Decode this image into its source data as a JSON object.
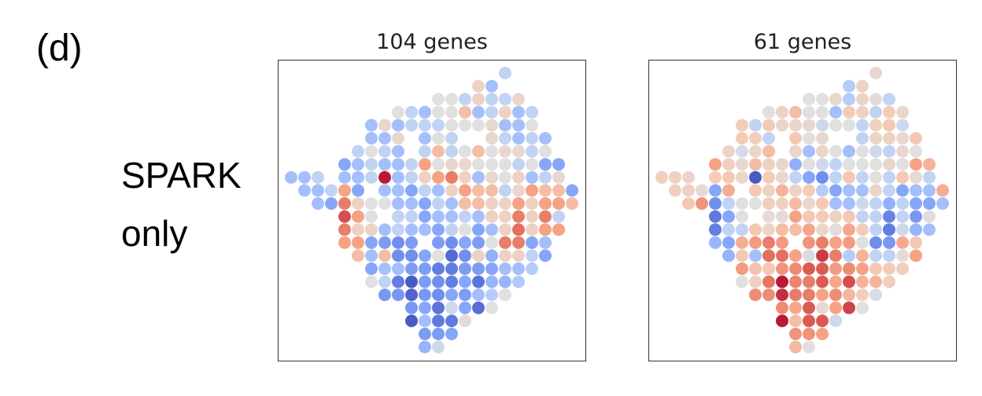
{
  "figure_label": "(d)",
  "row_label": [
    "SPARK",
    "only"
  ],
  "colormap": {
    "name": "coolwarm",
    "low": "#3b4cc0",
    "mid": "#dddddd",
    "high": "#b40426",
    "vmin": -3,
    "vmax": 3
  },
  "chart_data": [
    {
      "type": "scatter",
      "title": "104 genes",
      "xlabel": "",
      "ylabel": "",
      "axes_ticks": false,
      "encoding": "spot grid (row, col) colored by value",
      "rows": [
        {
          "row": 0,
          "start_col": 16,
          "values": [
            -0.5
          ]
        },
        {
          "row": 1,
          "start_col": 14,
          "values": [
            0.5,
            -1
          ]
        },
        {
          "row": 2,
          "start_col": 11,
          "values": [
            0,
            0,
            -0.5,
            0.5,
            -0.5,
            -0.5,
            0.4
          ]
        },
        {
          "row": 3,
          "start_col": 8,
          "values": [
            0,
            -0.5,
            -1,
            0,
            0,
            1,
            -1,
            -0.5,
            0.5,
            -1,
            -0.5
          ]
        },
        {
          "row": 4,
          "start_col": 6,
          "values": [
            -1,
            0.3,
            -1,
            -0.5,
            -0.5,
            -0.5,
            0,
            0,
            0,
            0.3,
            -1,
            -1,
            0
          ]
        },
        {
          "row": 5,
          "start_col": 6,
          "values": [
            -1,
            -1,
            0.3,
            null,
            -1,
            0,
            -0.5,
            null,
            null,
            0.3,
            -0.5,
            -1,
            -0.5,
            -1
          ]
        },
        {
          "row": 6,
          "start_col": 5,
          "values": [
            -0.5,
            0,
            -0.5,
            -1,
            null,
            -0.5,
            1,
            -0.5,
            0,
            1,
            0,
            0.3,
            0.3,
            -0.5,
            0
          ]
        },
        {
          "row": 7,
          "start_col": 4,
          "values": [
            -1.5,
            -1,
            -0.5,
            -1,
            -1,
            -0.5,
            1.5,
            0,
            0.3,
            0.3,
            0,
            0,
            0,
            -0.5,
            0,
            -1.5,
            -1.5
          ]
        },
        {
          "row": 8,
          "start_col": 0,
          "values": [
            -1,
            -1,
            -0.5,
            null,
            -1,
            -1,
            -0.5,
            3,
            -1,
            -0.5,
            0.5,
            1.5,
            2,
            0.5,
            -1,
            0.3,
            0,
            0.5,
            -1,
            -0.5,
            0.3
          ]
        },
        {
          "row": 9,
          "start_col": 1,
          "values": [
            -1,
            -1,
            -0.5,
            1.5,
            -1.5,
            null,
            -1,
            -1,
            -1.5,
            -0.5,
            -1,
            0.5,
            1.5,
            1,
            1,
            -0.5,
            0.3,
            1.5,
            1,
            1,
            -1.5
          ]
        },
        {
          "row": 10,
          "start_col": 2,
          "values": [
            -1,
            -1.5,
            2,
            0.5,
            0,
            0,
            -1,
            -1,
            -1.5,
            -0.5,
            -1,
            1,
            1,
            0.5,
            0.5,
            1.5,
            0.5,
            1.5,
            1.5,
            1
          ]
        },
        {
          "row": 11,
          "start_col": 4,
          "values": [
            2.5,
            1.5,
            0,
            null,
            -0.5,
            -0.5,
            -1.5,
            -1,
            -1,
            -0.5,
            -1,
            0.5,
            0.5,
            2,
            0.5,
            2,
            -0.5
          ]
        },
        {
          "row": 12,
          "start_col": 4,
          "values": [
            2,
            0.5,
            0.5,
            -1,
            -0.5,
            -1,
            -1,
            -1.5,
            -0.5,
            0,
            -1.5,
            -1,
            0.5,
            2.2,
            0.5,
            1.5,
            1.5
          ]
        },
        {
          "row": 13,
          "start_col": 4,
          "values": [
            1.5,
            1.5,
            -1.5,
            -1.7,
            -2,
            -1.7,
            null,
            -1.7,
            -2,
            -1.5,
            -1.7,
            0,
            2,
            2,
            -1.5,
            -1
          ]
        },
        {
          "row": 14,
          "start_col": 5,
          "values": [
            1,
            -1,
            1,
            -2,
            -2,
            -1.5,
            0,
            -2.7,
            -2,
            0.5,
            -1.3,
            0.5,
            0.5,
            -0.5,
            -1.5
          ]
        },
        {
          "row": 15,
          "start_col": 6,
          "values": [
            -1.5,
            -1,
            -1,
            -1.7,
            -1.7,
            -2.3,
            -2.3,
            -1.7,
            -1.7,
            -1.5,
            -1,
            -1,
            -0.7
          ]
        },
        {
          "row": 16,
          "start_col": 6,
          "values": [
            0,
            -0.5,
            -2.3,
            -3,
            -1.7,
            -2,
            -2.3,
            -1.5,
            -2.5,
            -1.2,
            -1.2,
            -0.8
          ]
        },
        {
          "row": 17,
          "start_col": 7,
          "values": [
            -1.8,
            -1.8,
            -2.8,
            -1.8,
            -2,
            -1.5,
            -1.7,
            -1,
            -0.7,
            0
          ]
        },
        {
          "row": 18,
          "start_col": 9,
          "values": [
            -1.8,
            -1.5,
            -2.5,
            -0.3,
            -1.5,
            -2.6,
            0
          ]
        },
        {
          "row": 19,
          "start_col": 9,
          "values": [
            -3,
            -1,
            -2.4,
            -2.4,
            0.2
          ]
        },
        {
          "row": 20,
          "start_col": 10,
          "values": [
            -1.7,
            -1.7,
            -1.5
          ]
        },
        {
          "row": 21,
          "start_col": 10,
          "values": [
            -1.2,
            -0.3
          ]
        }
      ]
    },
    {
      "type": "scatter",
      "title": "61 genes",
      "xlabel": "",
      "ylabel": "",
      "axes_ticks": false,
      "encoding": "spot grid (row, col) colored by value",
      "rows": [
        {
          "row": 0,
          "start_col": 16,
          "values": [
            0.3
          ]
        },
        {
          "row": 1,
          "start_col": 14,
          "values": [
            -0.7,
            0.5
          ]
        },
        {
          "row": 2,
          "start_col": 11,
          "values": [
            0,
            0,
            0.3,
            -0.7,
            0.4,
            0.2,
            -0.5
          ]
        },
        {
          "row": 3,
          "start_col": 8,
          "values": [
            0,
            0.5,
            1,
            0,
            0,
            -1,
            0.7,
            0.5,
            -0.5,
            0.7,
            0.4
          ]
        },
        {
          "row": 4,
          "start_col": 6,
          "values": [
            0.7,
            -0.5,
            0.7,
            0.4,
            0.4,
            0.3,
            -0.3,
            0,
            0,
            -0.5,
            0.6,
            0.8,
            -0.3
          ]
        },
        {
          "row": 5,
          "start_col": 6,
          "values": [
            0.7,
            0.6,
            -0.5,
            null,
            0.8,
            0,
            0.3,
            null,
            null,
            -0.5,
            0.4,
            0.5,
            0.3,
            0.8
          ]
        },
        {
          "row": 6,
          "start_col": 5,
          "values": [
            0.4,
            -0.2,
            0.4,
            1,
            null,
            0.4,
            -1,
            0.4,
            0,
            -1,
            0,
            -0.3,
            -0.5,
            0.3,
            0
          ]
        },
        {
          "row": 7,
          "start_col": 4,
          "values": [
            1.5,
            0.6,
            0.3,
            1,
            0.5,
            0.4,
            -1.3,
            0,
            -0.3,
            -0.5,
            0,
            0,
            0,
            0.4,
            0,
            1.5,
            1.2
          ]
        },
        {
          "row": 8,
          "start_col": 0,
          "values": [
            0.6,
            0.6,
            0.4,
            null,
            0.7,
            0.8,
            0.4,
            -3,
            0.7,
            0.3,
            -0.5,
            -1.5,
            -2,
            -0.5,
            0.8,
            -0.5,
            0,
            -0.5,
            0.8,
            0.2,
            -0.5
          ]
        },
        {
          "row": 9,
          "start_col": 1,
          "values": [
            0.6,
            0.5,
            0.2,
            -1.5,
            1.3,
            null,
            0.8,
            0.5,
            1.2,
            0.5,
            0.7,
            -0.7,
            -1.5,
            -1,
            -1,
            0.4,
            -0.5,
            -1.5,
            -1,
            -1,
            1.3
          ]
        },
        {
          "row": 10,
          "start_col": 2,
          "values": [
            0.8,
            1.7,
            -2,
            -0.5,
            0,
            0,
            0.6,
            0.5,
            1,
            0.3,
            0.8,
            -1,
            -1,
            -0.3,
            -0.5,
            -1.3,
            -0.5,
            -1.5,
            -1.5,
            -1
          ]
        },
        {
          "row": 11,
          "start_col": 4,
          "values": [
            -2.4,
            -1.5,
            0,
            null,
            0.2,
            0.2,
            1.5,
            0.8,
            0.7,
            0.5,
            0.8,
            -0.5,
            -0.5,
            -2.2,
            -0.5,
            -1.8,
            0.1
          ]
        },
        {
          "row": 12,
          "start_col": 4,
          "values": [
            -2.3,
            -0.5,
            -0.5,
            0.8,
            0.4,
            1,
            1,
            1.4,
            0.4,
            0.1,
            1.4,
            0.7,
            -0.5,
            -2.3,
            -0.3,
            -1.2,
            -1
          ]
        },
        {
          "row": 13,
          "start_col": 4,
          "values": [
            -1.2,
            -1.5,
            1.3,
            1.6,
            2,
            1.6,
            null,
            1.7,
            2,
            1.5,
            1.6,
            0,
            -2,
            -1.8,
            1.4,
            0.8
          ]
        },
        {
          "row": 14,
          "start_col": 5,
          "values": [
            -1.2,
            0.8,
            -1,
            2.2,
            2.2,
            1.5,
            -0.1,
            2.7,
            2,
            -0.7,
            1.2,
            -0.5,
            -0.5,
            0.2,
            1.5
          ]
        },
        {
          "row": 15,
          "start_col": 6,
          "values": [
            1.6,
            0.9,
            0.8,
            1.7,
            1.8,
            2.4,
            2.4,
            1.6,
            1.8,
            1.5,
            0.8,
            0.7,
            0.6
          ]
        },
        {
          "row": 16,
          "start_col": 6,
          "values": [
            0,
            0.5,
            2.1,
            3,
            1.9,
            2,
            2.4,
            1.4,
            2.5,
            1.2,
            1.2,
            0.6
          ]
        },
        {
          "row": 17,
          "start_col": 7,
          "values": [
            1.8,
            1.8,
            2.8,
            2,
            2,
            1.5,
            1.8,
            1.1,
            0.6,
            -0.1
          ]
        },
        {
          "row": 18,
          "start_col": 9,
          "values": [
            1.8,
            1.4,
            2.4,
            0.2,
            1.5,
            2.6,
            0
          ]
        },
        {
          "row": 19,
          "start_col": 9,
          "values": [
            3,
            1,
            2.4,
            2.4,
            -0.3
          ]
        },
        {
          "row": 20,
          "start_col": 10,
          "values": [
            1.7,
            1.7,
            1.5
          ]
        },
        {
          "row": 21,
          "start_col": 10,
          "values": [
            1.1,
            0
          ]
        }
      ]
    }
  ]
}
